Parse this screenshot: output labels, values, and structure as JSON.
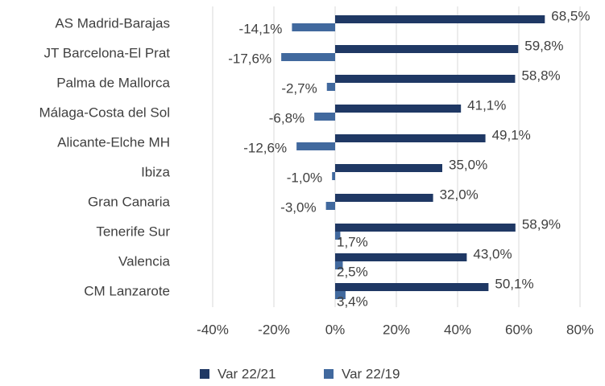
{
  "chart_data": {
    "type": "hbar",
    "categories": [
      "AS Madrid-Barajas",
      "JT Barcelona-El Prat",
      "Palma de Mallorca",
      "Málaga-Costa del Sol",
      "Alicante-Elche MH",
      "Ibiza",
      "Gran Canaria",
      "Tenerife Sur",
      "Valencia",
      "CM Lanzarote"
    ],
    "series": [
      {
        "name": "Var 22/21",
        "color": "#1f3864",
        "values": [
          68.5,
          59.8,
          58.8,
          41.1,
          49.1,
          35.0,
          32.0,
          58.9,
          43.0,
          50.1
        ],
        "value_labels": [
          "68,5%",
          "59,8%",
          "58,8%",
          "41,1%",
          "49,1%",
          "35,0%",
          "32,0%",
          "58,9%",
          "43,0%",
          "50,1%"
        ]
      },
      {
        "name": "Var 22/19",
        "color": "#41699e",
        "values": [
          -14.1,
          -17.6,
          -2.7,
          -6.8,
          -12.6,
          -1.0,
          -3.0,
          1.7,
          2.5,
          3.4
        ],
        "value_labels": [
          "-14,1%",
          "-17,6%",
          "-2,7%",
          "-6,8%",
          "-12,6%",
          "-1,0%",
          "-3,0%",
          "1,7%",
          "2,5%",
          "3,4%"
        ]
      }
    ],
    "xlim": [
      -40,
      80
    ],
    "xticks": [
      {
        "value": -40,
        "label": "-40%"
      },
      {
        "value": -20,
        "label": "-20%"
      },
      {
        "value": 0,
        "label": "0%"
      },
      {
        "value": 20,
        "label": "20%"
      },
      {
        "value": 40,
        "label": "40%"
      },
      {
        "value": 60,
        "label": "60%"
      },
      {
        "value": 80,
        "label": "80%"
      }
    ],
    "grid": true,
    "legend": "bottom"
  }
}
